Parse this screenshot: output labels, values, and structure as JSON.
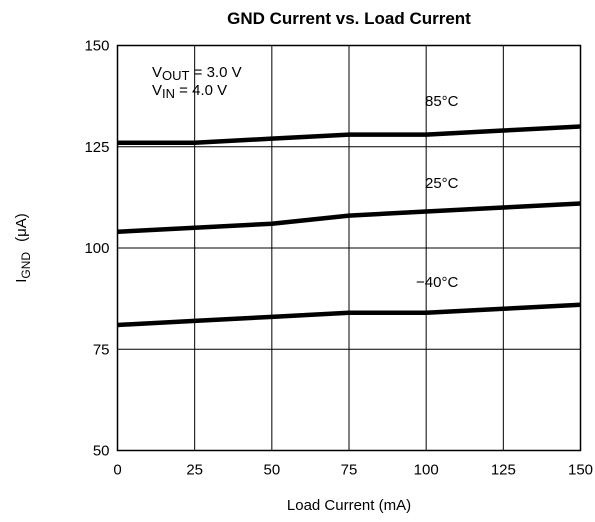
{
  "chart_data": {
    "type": "line",
    "title": "GND Current vs. Load Current",
    "xlabel": "Load Current (mA)",
    "ylabel": {
      "symbol": "I",
      "subscript": "GND",
      "unit": "(μA)"
    },
    "xlim": [
      0,
      150
    ],
    "ylim": [
      50,
      150
    ],
    "x_ticks": [
      0,
      25,
      50,
      75,
      100,
      125,
      150
    ],
    "y_ticks": [
      50,
      75,
      100,
      125,
      150
    ],
    "grid": true,
    "conditions": [
      {
        "symbol": "V",
        "subscript": "OUT",
        "value": " = 3.0 V"
      },
      {
        "symbol": "V",
        "subscript": "IN",
        "value": " = 4.0 V"
      }
    ],
    "x": [
      0,
      25,
      50,
      75,
      100,
      125,
      150
    ],
    "series": [
      {
        "name": "85°C",
        "color": "#000000",
        "values": [
          126,
          126,
          127,
          128,
          128,
          129,
          130
        ]
      },
      {
        "name": "25°C",
        "color": "#000000",
        "values": [
          104,
          105,
          106,
          108,
          109,
          110,
          111
        ]
      },
      {
        "name": "−40°C",
        "color": "#000000",
        "values": [
          81,
          82,
          83,
          84,
          84,
          85,
          86
        ]
      }
    ]
  }
}
